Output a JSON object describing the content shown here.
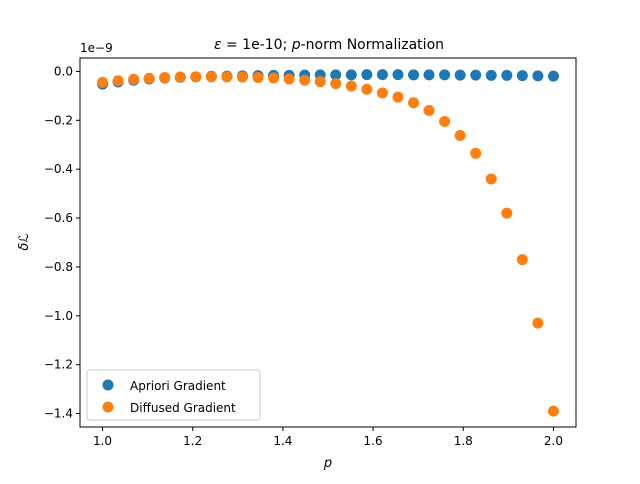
{
  "chart_data": {
    "type": "scatter",
    "title": "ε = 1e-10; p-norm Normalization",
    "title_parts": {
      "eps_symbol": "ε",
      "equals": " = 1e-10; ",
      "p_symbol": "p",
      "suffix": "-norm Normalization"
    },
    "xlabel": "p",
    "ylabel": "δℒ",
    "y_multiplier_label": "1e−9",
    "xlim": [
      0.95,
      2.05
    ],
    "ylim": [
      -1.455,
      0.055
    ],
    "y_scale": 1e-09,
    "xticks": [
      1.0,
      1.2,
      1.4,
      1.6,
      1.8,
      2.0
    ],
    "xtick_labels": [
      "1.0",
      "1.2",
      "1.4",
      "1.6",
      "1.8",
      "2.0"
    ],
    "yticks": [
      0.0,
      -0.2,
      -0.4,
      -0.6,
      -0.8,
      -1.0,
      -1.2,
      -1.4
    ],
    "ytick_labels": [
      "0.0",
      "−0.2",
      "−0.4",
      "−0.6",
      "−0.8",
      "−1.0",
      "−1.2",
      "−1.4"
    ],
    "grid": false,
    "legend_position": "lower-left",
    "x": [
      1.0,
      1.0345,
      1.069,
      1.1034,
      1.1379,
      1.1724,
      1.2069,
      1.2414,
      1.2759,
      1.3103,
      1.3448,
      1.3793,
      1.4138,
      1.4483,
      1.4828,
      1.5172,
      1.5517,
      1.5862,
      1.6207,
      1.6552,
      1.6897,
      1.7241,
      1.7586,
      1.7931,
      1.8276,
      1.8621,
      1.8966,
      1.931,
      1.9655,
      2.0
    ],
    "series": [
      {
        "name": "Apriori Gradient",
        "color": "#1f77b4",
        "values": [
          -0.052,
          -0.043,
          -0.036,
          -0.031,
          -0.027,
          -0.024,
          -0.022,
          -0.02,
          -0.019,
          -0.018,
          -0.017,
          -0.016,
          -0.016,
          -0.015,
          -0.014,
          -0.014,
          -0.014,
          -0.013,
          -0.013,
          -0.013,
          -0.014,
          -0.014,
          -0.014,
          -0.015,
          -0.015,
          -0.016,
          -0.016,
          -0.017,
          -0.018,
          -0.019
        ]
      },
      {
        "name": "Diffused Gradient",
        "color": "#ff7f0e",
        "values": [
          -0.045,
          -0.038,
          -0.032,
          -0.028,
          -0.025,
          -0.023,
          -0.022,
          -0.022,
          -0.022,
          -0.023,
          -0.025,
          -0.027,
          -0.031,
          -0.036,
          -0.042,
          -0.05,
          -0.06,
          -0.073,
          -0.088,
          -0.105,
          -0.128,
          -0.16,
          -0.205,
          -0.262,
          -0.335,
          -0.44,
          -0.58,
          -0.77,
          -1.03,
          -1.39
        ]
      }
    ]
  }
}
